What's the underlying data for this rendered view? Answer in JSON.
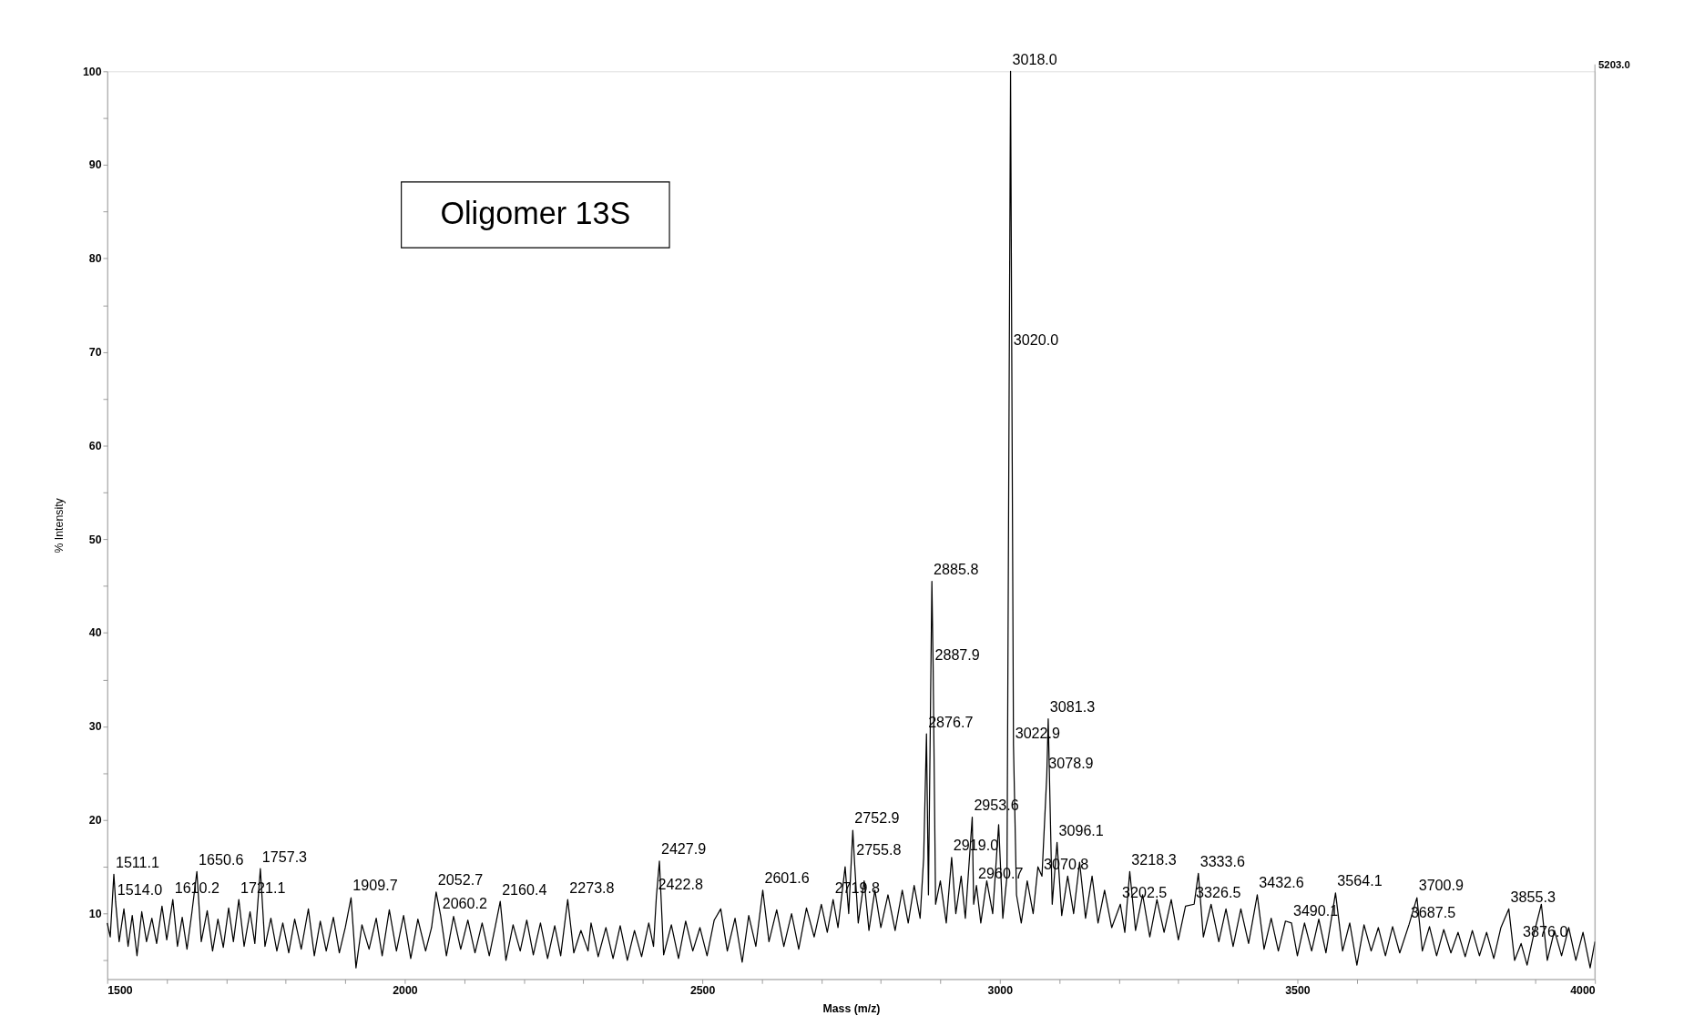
{
  "chart_data": {
    "type": "line",
    "xlabel": "Mass (m/z)",
    "ylabel": "% Intensity",
    "xlim": [
      1500,
      4000
    ],
    "ylim": [
      3,
      100
    ],
    "xticks": [
      1500,
      {
        "value": 1600,
        "label": null
      },
      {
        "value": 1700,
        "label": null
      },
      {
        "value": 1800,
        "label": null
      },
      {
        "value": 1900,
        "label": null
      },
      2000,
      {
        "value": 2100,
        "label": null
      },
      {
        "value": 2200,
        "label": null
      },
      {
        "value": 2300,
        "label": null
      },
      {
        "value": 2400,
        "label": null
      },
      2500,
      {
        "value": 2600,
        "label": null
      },
      {
        "value": 2700,
        "label": null
      },
      {
        "value": 2800,
        "label": null
      },
      {
        "value": 2900,
        "label": null
      },
      3000,
      {
        "value": 3100,
        "label": null
      },
      {
        "value": 3200,
        "label": null
      },
      {
        "value": 3300,
        "label": null
      },
      {
        "value": 3400,
        "label": null
      },
      3500,
      {
        "value": 3600,
        "label": null
      },
      {
        "value": 3700,
        "label": null
      },
      {
        "value": 3800,
        "label": null
      },
      {
        "value": 3900,
        "label": null
      },
      4000
    ],
    "yticks": [
      {
        "value": 5,
        "label": null
      },
      10,
      {
        "value": 15,
        "label": null
      },
      20,
      {
        "value": 25,
        "label": null
      },
      30,
      {
        "value": 35,
        "label": null
      },
      40,
      {
        "value": 45,
        "label": null
      },
      50,
      {
        "value": 55,
        "label": null
      },
      60,
      {
        "value": 65,
        "label": null
      },
      70,
      {
        "value": 75,
        "label": null
      },
      80,
      {
        "value": 85,
        "label": null
      },
      90,
      {
        "value": 95,
        "label": null
      },
      100
    ],
    "grid": false,
    "marker": "none",
    "line_style": "solid",
    "series": [
      {
        "color": "#000000",
        "x": [
          1500,
          1505,
          1511.1,
          1514.0,
          1520,
          1528,
          1535,
          1542,
          1550,
          1558,
          1566,
          1575,
          1583,
          1592,
          1600,
          1610.2,
          1618,
          1626,
          1634,
          1642,
          1650.6,
          1658,
          1668,
          1677,
          1686,
          1695,
          1704,
          1712,
          1721.1,
          1730,
          1740,
          1748,
          1757.3,
          1765,
          1775,
          1785,
          1795,
          1805,
          1815,
          1826,
          1838,
          1848,
          1858,
          1868,
          1880,
          1890,
          1900,
          1909.7,
          1918,
          1928,
          1940,
          1952,
          1962,
          1974,
          1986,
          1998,
          2010,
          2022,
          2035,
          2045,
          2052.7,
          2060.2,
          2070,
          2082,
          2094,
          2106,
          2118,
          2130,
          2142,
          2152,
          2160.4,
          2170,
          2182,
          2194,
          2205,
          2216,
          2228,
          2240,
          2252,
          2262,
          2273.8,
          2284,
          2296,
          2308,
          2313,
          2325,
          2338,
          2350,
          2362,
          2374,
          2386,
          2398,
          2410,
          2418,
          2422.8,
          2427.9,
          2435,
          2448,
          2460,
          2472,
          2484,
          2496,
          2508,
          2520,
          2531,
          2542,
          2555,
          2567,
          2578,
          2590,
          2601.6,
          2612,
          2625,
          2637,
          2650,
          2662,
          2675,
          2688,
          2700,
          2710,
          2719.8,
          2728,
          2740,
          2746,
          2752.9,
          2755.8,
          2762,
          2772,
          2780,
          2790,
          2800,
          2812,
          2824,
          2836,
          2846,
          2856,
          2866,
          2872,
          2876.7,
          2880,
          2885.8,
          2887.9,
          2892,
          2900,
          2910,
          2919.0,
          2926,
          2935,
          2942,
          2953.6,
          2956,
          2960.7,
          2968,
          2978,
          2988,
          2998,
          3005,
          3012,
          3018.0,
          3020.0,
          3022.9,
          3028,
          3036,
          3046,
          3056,
          3064,
          3070.8,
          3078.9,
          3081.3,
          3088,
          3096.1,
          3104,
          3114,
          3124,
          3134,
          3144,
          3155,
          3165,
          3176,
          3188,
          3202.5,
          3210,
          3218.3,
          3228,
          3240,
          3252,
          3264,
          3276,
          3288,
          3300,
          3312,
          3326.5,
          3333.6,
          3342,
          3355,
          3368,
          3380,
          3392,
          3405,
          3418,
          3432.6,
          3444,
          3456,
          3468,
          3480,
          3490.1,
          3500,
          3512,
          3524,
          3536,
          3548,
          3564.1,
          3576,
          3588,
          3600,
          3612,
          3624,
          3636,
          3648,
          3660,
          3672,
          3687.5,
          3700.9,
          3710,
          3722,
          3734,
          3746,
          3758,
          3770,
          3782,
          3794,
          3806,
          3818,
          3830,
          3842,
          3855.3,
          3865,
          3876.0,
          3886,
          3898,
          3910,
          3920,
          3932,
          3944,
          3956,
          3968,
          3980,
          3992,
          4000
        ],
        "values": [
          9,
          7.5,
          14.2,
          11.3,
          7,
          10.5,
          6.5,
          9.8,
          5.5,
          10.2,
          7,
          9.5,
          6.8,
          10.8,
          7.2,
          11.5,
          6.5,
          9.6,
          6.2,
          10,
          14.5,
          7,
          10.3,
          6,
          9.4,
          6.4,
          10.6,
          7,
          11.5,
          6.5,
          10.2,
          6.8,
          14.8,
          6.5,
          9.5,
          6,
          9,
          5.8,
          9.4,
          6.2,
          10.5,
          5.5,
          9.2,
          6,
          9.6,
          5.8,
          8.5,
          11.7,
          4.2,
          8.8,
          6.2,
          9.5,
          5.5,
          10.4,
          6,
          9.8,
          5.2,
          9.4,
          6,
          8.5,
          12.3,
          9.8,
          5.5,
          9.7,
          6.2,
          9.3,
          5.8,
          9,
          5.5,
          8.6,
          11.3,
          5,
          8.8,
          6,
          9.3,
          5.6,
          9,
          5.2,
          8.7,
          5.5,
          11.5,
          5.8,
          8.2,
          6,
          9,
          5.4,
          8.5,
          5.2,
          8.7,
          5,
          8.2,
          5.4,
          9,
          6.5,
          11.8,
          15.6,
          5.6,
          8.8,
          5.2,
          9.2,
          6,
          8.5,
          5.5,
          9.3,
          10.5,
          6,
          9.5,
          4.8,
          9.8,
          6.5,
          12.5,
          7,
          10.4,
          6.5,
          10,
          6.2,
          10.6,
          7.5,
          11,
          8,
          11.5,
          8.5,
          15,
          10,
          18.9,
          15.5,
          9,
          13.5,
          8.2,
          12.5,
          8.5,
          12,
          8.2,
          12.5,
          9,
          13,
          9.5,
          16,
          29.2,
          12,
          45.5,
          36.4,
          11,
          13.5,
          9,
          16,
          10,
          14,
          9.5,
          20.3,
          11,
          13,
          9,
          13.5,
          10,
          19.5,
          9.5,
          14,
          100,
          70,
          28,
          12,
          9,
          13.5,
          10,
          15,
          14,
          24.8,
          30.8,
          11,
          17.6,
          9.8,
          14,
          10,
          15.5,
          9.5,
          14,
          9,
          12.5,
          8.5,
          11,
          8,
          14.5,
          8.2,
          12,
          7.5,
          11.5,
          8,
          11.5,
          7.2,
          10.8,
          11,
          14.3,
          7.5,
          11,
          7,
          10.5,
          6.5,
          10.5,
          6.8,
          12,
          6.2,
          9.5,
          6,
          9.2,
          9,
          5.5,
          9,
          6,
          9.4,
          5.8,
          12.2,
          6,
          9,
          4.5,
          8.8,
          6,
          8.5,
          5.5,
          8.6,
          5.8,
          8.8,
          11.7,
          6,
          8.6,
          5.5,
          8.3,
          5.8,
          8,
          5.4,
          8.2,
          5.5,
          8,
          5.2,
          8.5,
          10.5,
          5,
          6.8,
          4.5,
          8,
          11,
          5,
          8.2,
          5.5,
          8.5,
          5,
          8,
          4.2,
          7
        ]
      }
    ],
    "annotations": [
      "Oligomer 13S",
      "5203.0",
      {
        "text": "1511.1",
        "x": 1511.1,
        "y": 14.2
      },
      {
        "text": "1514.0",
        "x": 1514.0,
        "y": 11.3
      },
      {
        "text": "1610.2",
        "x": 1610.2,
        "y": 11.5
      },
      {
        "text": "1650.6",
        "x": 1650.6,
        "y": 14.5
      },
      {
        "text": "1721.1",
        "x": 1721.1,
        "y": 11.5
      },
      {
        "text": "1757.3",
        "x": 1757.3,
        "y": 14.8
      },
      {
        "text": "1909.7",
        "x": 1909.7,
        "y": 11.7
      },
      {
        "text": "2052.7",
        "x": 2052.7,
        "y": 12.3
      },
      {
        "text": "2060.2",
        "x": 2060.2,
        "y": 9.8
      },
      {
        "text": "2160.4",
        "x": 2160.4,
        "y": 11.3
      },
      {
        "text": "2273.8",
        "x": 2273.8,
        "y": 11.5
      },
      {
        "text": "2427.9",
        "x": 2427.9,
        "y": 15.6
      },
      {
        "text": "2422.8",
        "x": 2422.8,
        "y": 11.8
      },
      {
        "text": "2601.6",
        "x": 2601.6,
        "y": 12.5
      },
      {
        "text": "2752.9",
        "x": 2752.9,
        "y": 18.9
      },
      {
        "text": "2755.8",
        "x": 2755.8,
        "y": 15.5
      },
      {
        "text": "2719.8",
        "x": 2719.8,
        "y": 11.5
      },
      {
        "text": "2876.7",
        "x": 2876.7,
        "y": 29.2
      },
      {
        "text": "2885.8",
        "x": 2885.8,
        "y": 45.5
      },
      {
        "text": "2887.9",
        "x": 2887.9,
        "y": 36.4
      },
      {
        "text": "2919.0",
        "x": 2919.0,
        "y": 16
      },
      {
        "text": "2953.6",
        "x": 2953.6,
        "y": 20.3
      },
      {
        "text": "2960.7",
        "x": 2960.7,
        "y": 13
      },
      {
        "text": "3018.0",
        "x": 3018.0,
        "y": 100
      },
      {
        "text": "3020.0",
        "x": 3020.0,
        "y": 70
      },
      {
        "text": "3022.9",
        "x": 3022.9,
        "y": 28
      },
      {
        "text": "3081.3",
        "x": 3081.3,
        "y": 30.8
      },
      {
        "text": "3078.9",
        "x": 3078.9,
        "y": 24.8
      },
      {
        "text": "3096.1",
        "x": 3096.1,
        "y": 17.6
      },
      {
        "text": "3070.8",
        "x": 3070.8,
        "y": 14
      },
      {
        "text": "3218.3",
        "x": 3218.3,
        "y": 14.5
      },
      {
        "text": "3202.5",
        "x": 3202.5,
        "y": 11
      },
      {
        "text": "3333.6",
        "x": 3333.6,
        "y": 14.3
      },
      {
        "text": "3326.5",
        "x": 3326.5,
        "y": 11
      },
      {
        "text": "3432.6",
        "x": 3432.6,
        "y": 12
      },
      {
        "text": "3564.1",
        "x": 3564.1,
        "y": 12.2
      },
      {
        "text": "3490.1",
        "x": 3490.1,
        "y": 9
      },
      {
        "text": "3687.5",
        "x": 3687.5,
        "y": 8.8
      },
      {
        "text": "3700.9",
        "x": 3700.9,
        "y": 11.7
      },
      {
        "text": "3855.3",
        "x": 3855.3,
        "y": 10.5
      },
      {
        "text": "3876.0",
        "x": 3876.0,
        "y": 6.8
      }
    ]
  }
}
